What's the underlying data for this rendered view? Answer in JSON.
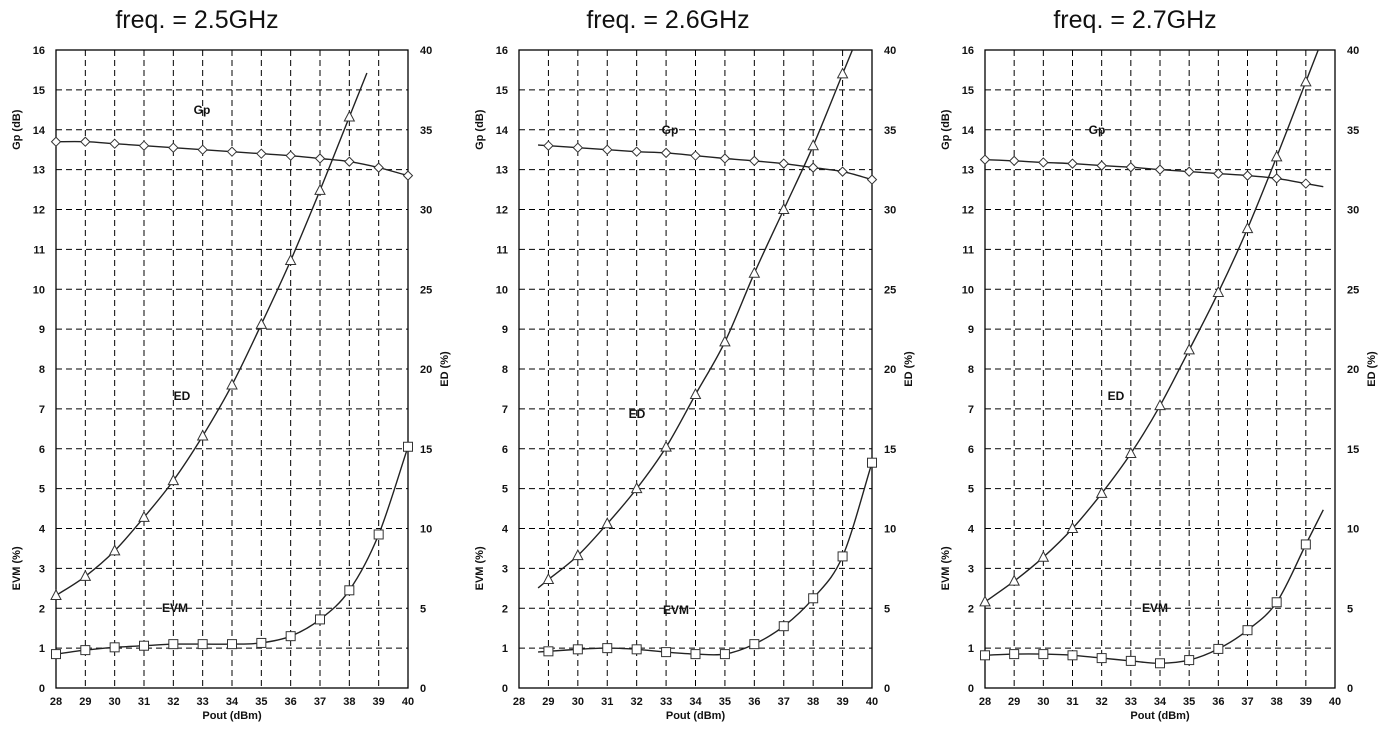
{
  "chart_data": [
    {
      "type": "line",
      "title": "freq. = 2.5GHz",
      "xlabel": "Pout (dBm)",
      "ylabel_left_top": "Gp (dB)",
      "ylabel_left_bottom": "EVM (%)",
      "ylabel_right": "ED (%)",
      "xlim": [
        28,
        40
      ],
      "ylim_left": [
        0,
        16
      ],
      "ylim_right": [
        0,
        40
      ],
      "x_ticks": [
        "28",
        "29",
        "30",
        "31",
        "32",
        "33",
        "34",
        "35",
        "36",
        "37",
        "38",
        "39",
        "40"
      ],
      "left_ticks": [
        "0",
        "1",
        "2",
        "3",
        "4",
        "5",
        "6",
        "7",
        "8",
        "9",
        "10",
        "11",
        "12",
        "13",
        "14",
        "15",
        "16"
      ],
      "right_ticks": [
        "0",
        "5",
        "10",
        "15",
        "20",
        "25",
        "30",
        "35",
        "40"
      ],
      "grid": true,
      "annotations": [
        {
          "text": "Gp",
          "series": "Gp"
        },
        {
          "text": "ED",
          "series": "ED"
        },
        {
          "text": "EVM",
          "series": "EVM"
        }
      ],
      "series": [
        {
          "name": "Gp",
          "axis": "left",
          "marker": "diamond",
          "x": [
            28,
            29,
            30,
            31,
            32,
            33,
            34,
            35,
            36,
            37,
            38,
            39,
            40
          ],
          "y": [
            13.7,
            13.7,
            13.65,
            13.6,
            13.55,
            13.5,
            13.45,
            13.4,
            13.35,
            13.28,
            13.2,
            13.05,
            12.85
          ]
        },
        {
          "name": "ED",
          "axis": "right",
          "marker": "triangle",
          "x": [
            28,
            29,
            30,
            31,
            32,
            33,
            34,
            35,
            36,
            37,
            38
          ],
          "y": [
            5.8,
            7.0,
            8.6,
            10.7,
            13.0,
            15.8,
            19.0,
            22.8,
            26.8,
            31.2,
            35.8
          ]
        },
        {
          "name": "EVM",
          "axis": "left",
          "marker": "square",
          "x": [
            28,
            29,
            30,
            31,
            32,
            33,
            34,
            35,
            36,
            37,
            38,
            39,
            40
          ],
          "y": [
            0.85,
            0.95,
            1.02,
            1.06,
            1.1,
            1.1,
            1.1,
            1.13,
            1.3,
            1.72,
            2.45,
            3.85,
            6.05
          ]
        }
      ]
    },
    {
      "type": "line",
      "title": "freq. = 2.6GHz",
      "xlabel": "Pout (dBm)",
      "ylabel_left_top": "Gp (dB)",
      "ylabel_left_bottom": "EVM (%)",
      "ylabel_right": "ED (%)",
      "xlim": [
        28,
        40
      ],
      "ylim_left": [
        0,
        16
      ],
      "ylim_right": [
        0,
        40
      ],
      "x_ticks": [
        "28",
        "29",
        "30",
        "31",
        "32",
        "33",
        "34",
        "35",
        "36",
        "37",
        "38",
        "39",
        "40"
      ],
      "left_ticks": [
        "0",
        "1",
        "2",
        "3",
        "4",
        "5",
        "6",
        "7",
        "8",
        "9",
        "10",
        "11",
        "12",
        "13",
        "14",
        "15",
        "16"
      ],
      "right_ticks": [
        "0",
        "5",
        "10",
        "15",
        "20",
        "25",
        "30",
        "35",
        "40"
      ],
      "grid": true,
      "annotations": [
        {
          "text": "Gp",
          "series": "Gp"
        },
        {
          "text": "ED",
          "series": "ED"
        },
        {
          "text": "EVM",
          "series": "EVM"
        }
      ],
      "series": [
        {
          "name": "Gp",
          "axis": "left",
          "marker": "diamond",
          "x": [
            29,
            30,
            31,
            32,
            33,
            34,
            35,
            36,
            37,
            38,
            39,
            40
          ],
          "y": [
            13.6,
            13.55,
            13.5,
            13.45,
            13.42,
            13.35,
            13.28,
            13.22,
            13.15,
            13.05,
            12.95,
            12.75
          ]
        },
        {
          "name": "ED",
          "axis": "right",
          "marker": "triangle",
          "x": [
            29,
            30,
            31,
            32,
            33,
            34,
            35,
            36,
            37,
            38,
            39
          ],
          "y": [
            6.8,
            8.3,
            10.3,
            12.5,
            15.1,
            18.4,
            21.7,
            26.0,
            30.0,
            34.0,
            38.5
          ]
        },
        {
          "name": "EVM",
          "axis": "left",
          "marker": "square",
          "x": [
            29,
            30,
            31,
            32,
            33,
            34,
            35,
            36,
            37,
            38,
            39,
            40
          ],
          "y": [
            0.92,
            0.97,
            1.0,
            0.97,
            0.9,
            0.85,
            0.85,
            1.1,
            1.55,
            2.25,
            3.3,
            5.65
          ]
        }
      ]
    },
    {
      "type": "line",
      "title": "freq. = 2.7GHz",
      "xlabel": "Pout (dBm)",
      "ylabel_left_top": "Gp (dB)",
      "ylabel_left_bottom": "EVM (%)",
      "ylabel_right": "ED (%)",
      "xlim": [
        28,
        40
      ],
      "ylim_left": [
        0,
        16
      ],
      "ylim_right": [
        0,
        40
      ],
      "x_ticks": [
        "28",
        "29",
        "30",
        "31",
        "32",
        "33",
        "34",
        "35",
        "36",
        "37",
        "38",
        "39",
        "40"
      ],
      "left_ticks": [
        "0",
        "1",
        "2",
        "3",
        "4",
        "5",
        "6",
        "7",
        "8",
        "9",
        "10",
        "11",
        "12",
        "13",
        "14",
        "15",
        "16"
      ],
      "right_ticks": [
        "0",
        "5",
        "10",
        "15",
        "20",
        "25",
        "30",
        "35",
        "40"
      ],
      "grid": true,
      "annotations": [
        {
          "text": "Gp",
          "series": "Gp"
        },
        {
          "text": "ED",
          "series": "ED"
        },
        {
          "text": "EVM",
          "series": "EVM"
        }
      ],
      "series": [
        {
          "name": "Gp",
          "axis": "left",
          "marker": "diamond",
          "x": [
            28,
            29,
            30,
            31,
            32,
            33,
            34,
            35,
            36,
            37,
            38,
            39
          ],
          "y": [
            13.25,
            13.22,
            13.18,
            13.15,
            13.1,
            13.06,
            13.0,
            12.95,
            12.9,
            12.85,
            12.78,
            12.65
          ]
        },
        {
          "name": "ED",
          "axis": "right",
          "marker": "triangle",
          "x": [
            28,
            29,
            30,
            31,
            32,
            33,
            34,
            35,
            36,
            37,
            38,
            39
          ],
          "y": [
            5.4,
            6.7,
            8.2,
            10.0,
            12.2,
            14.7,
            17.7,
            21.2,
            24.8,
            28.8,
            33.3,
            38.0
          ]
        },
        {
          "name": "EVM",
          "axis": "left",
          "marker": "square",
          "x": [
            28,
            29,
            30,
            31,
            32,
            33,
            34,
            35,
            36,
            37,
            38,
            39
          ],
          "y": [
            0.82,
            0.85,
            0.85,
            0.82,
            0.75,
            0.68,
            0.62,
            0.7,
            0.98,
            1.45,
            2.15,
            3.6
          ]
        }
      ]
    }
  ]
}
